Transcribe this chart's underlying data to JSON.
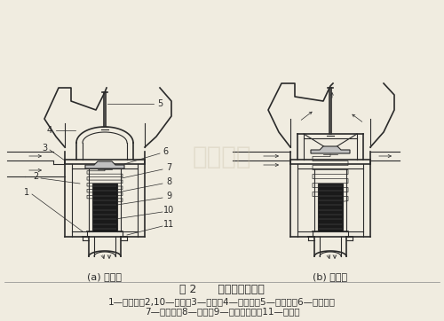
{
  "title": "图 2      蜡式双阀节温器",
  "caption_line1": "1—下支架；2,10—弹簧；3—阀座；4—上支架；5—反推杆；6—主阀门；",
  "caption_line2": "7—橡胶套；8—石蜡；9—感温器外壳；11—副阀门",
  "label_a": "(a) 小循环",
  "label_b": "(b) 大循环",
  "bg_color": "#f0ece0",
  "line_color": "#2a2a2a",
  "fill_dark": "#1a1a1a",
  "fill_gray": "#888888",
  "fill_light": "#cccccc",
  "fill_white": "#f0ece0",
  "watermark_color": "#c8bfa8",
  "fig_width": 5.0,
  "fig_height": 3.62
}
